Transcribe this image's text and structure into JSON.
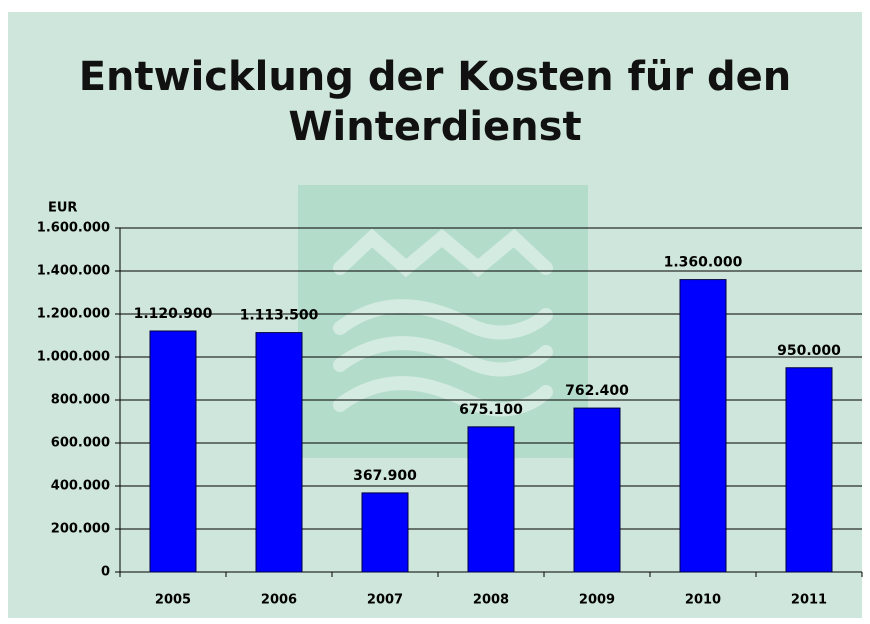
{
  "chart_data": {
    "type": "bar",
    "title": "Entwicklung der Kosten für den Winterdienst",
    "ylabel": "EUR",
    "categories": [
      "2005",
      "2006",
      "2007",
      "2008",
      "2009",
      "2010",
      "2011"
    ],
    "values": [
      1120900,
      1113500,
      367900,
      675100,
      762400,
      1360000,
      950000
    ],
    "value_labels": [
      "1.120.900",
      "1.113.500",
      "367.900",
      "675.100",
      "762.400",
      "1.360.000",
      "950.000"
    ],
    "color": "#0000ff",
    "ylim": [
      0,
      1600000
    ],
    "yticks": [
      0,
      {
        "value": 200000,
        "label": "200.000"
      },
      {
        "value": 400000,
        "label": "400.000"
      },
      {
        "value": 600000,
        "label": "600.000"
      },
      {
        "value": 800000,
        "label": "800.000"
      },
      {
        "value": 1000000,
        "label": "1.000.000"
      },
      {
        "value": 1200000,
        "label": "1.200.000"
      },
      {
        "value": 1400000,
        "label": "1.400.000"
      },
      {
        "value": 1600000,
        "label": "1.600.000"
      }
    ],
    "grid": true
  }
}
